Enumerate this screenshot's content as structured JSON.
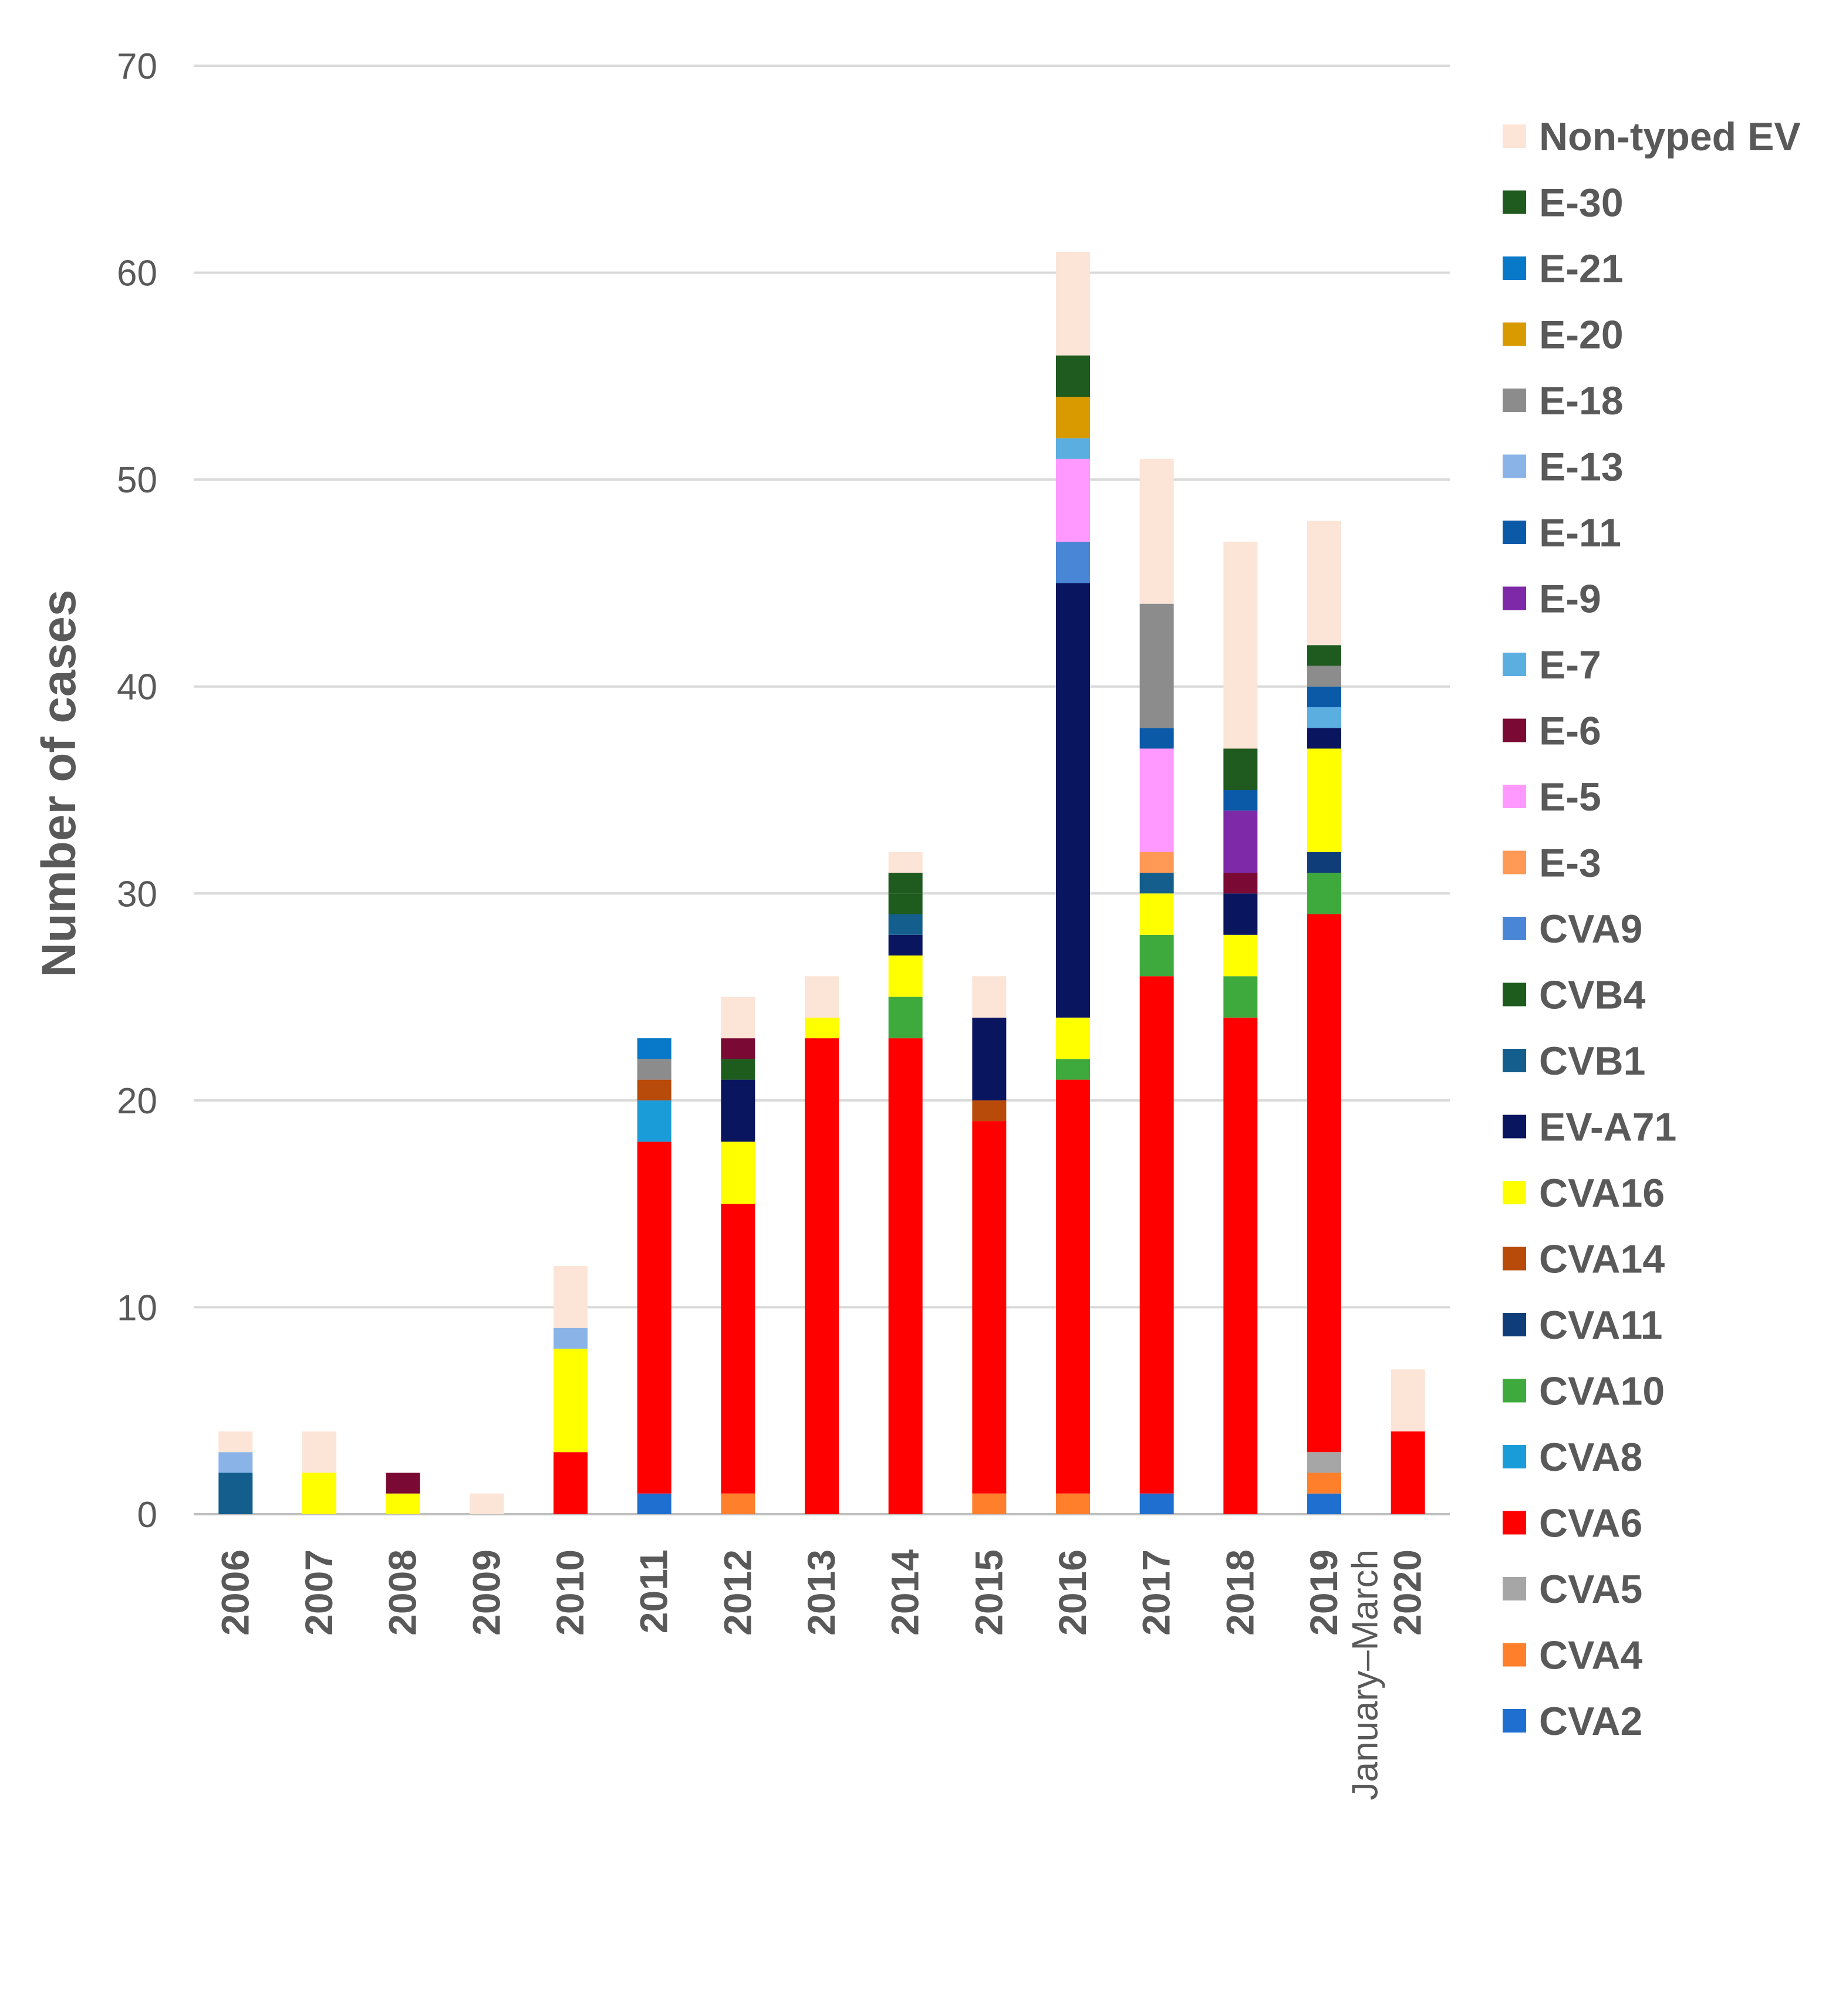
{
  "chart_data": {
    "type": "bar",
    "stacked": true,
    "title": "",
    "xlabel": "",
    "ylabel": "Number of cases",
    "ylim": [
      0,
      70
    ],
    "yticks": [
      0,
      10,
      20,
      30,
      40,
      50,
      60,
      70
    ],
    "grid": "horizontal",
    "legend_position": "right",
    "categories": [
      "2006",
      "2007",
      "2008",
      "2009",
      "2010",
      "2011",
      "2012",
      "2013",
      "2014",
      "2015",
      "2016",
      "2017",
      "2018",
      "2019",
      "2020"
    ],
    "category_sublabels": [
      "",
      "",
      "",
      "",
      "",
      "",
      "",
      "",
      "",
      "",
      "",
      "",
      "",
      "",
      "January–March"
    ],
    "series": [
      {
        "name": "CVA2",
        "color": "#1F6FD1",
        "values": [
          0,
          0,
          0,
          0,
          0,
          1,
          0,
          0,
          0,
          0,
          0,
          1,
          0,
          1,
          0
        ]
      },
      {
        "name": "CVA4",
        "color": "#FF7F2A",
        "values": [
          0,
          0,
          0,
          0,
          0,
          0,
          1,
          0,
          0,
          1,
          1,
          0,
          0,
          1,
          0
        ]
      },
      {
        "name": "CVA5",
        "color": "#A6A6A6",
        "values": [
          0,
          0,
          0,
          0,
          0,
          0,
          0,
          0,
          0,
          0,
          0,
          0,
          0,
          1,
          0
        ]
      },
      {
        "name": "CVA6",
        "color": "#FF0000",
        "values": [
          0,
          0,
          0,
          0,
          3,
          17,
          14,
          23,
          23,
          18,
          20,
          25,
          24,
          26,
          4
        ]
      },
      {
        "name": "CVA8",
        "color": "#1A9CD8",
        "values": [
          0,
          0,
          0,
          0,
          0,
          2,
          0,
          0,
          0,
          0,
          0,
          0,
          0,
          0,
          0
        ]
      },
      {
        "name": "CVA10",
        "color": "#3EAA3E",
        "values": [
          0,
          0,
          0,
          0,
          0,
          0,
          0,
          0,
          2,
          0,
          1,
          2,
          2,
          2,
          0
        ]
      },
      {
        "name": "CVA11",
        "color": "#0F3D7A",
        "values": [
          0,
          0,
          0,
          0,
          0,
          0,
          0,
          0,
          0,
          0,
          0,
          0,
          0,
          1,
          0
        ]
      },
      {
        "name": "CVA14",
        "color": "#B84A0A",
        "values": [
          0,
          0,
          0,
          0,
          0,
          1,
          0,
          0,
          0,
          1,
          0,
          0,
          0,
          0,
          0
        ]
      },
      {
        "name": "CVA16",
        "color": "#FFFF00",
        "values": [
          0,
          2,
          1,
          0,
          5,
          0,
          3,
          1,
          2,
          0,
          2,
          2,
          2,
          5,
          0
        ]
      },
      {
        "name": "EV-A71",
        "color": "#0A1560",
        "values": [
          0,
          0,
          0,
          0,
          0,
          0,
          3,
          0,
          1,
          4,
          21,
          0,
          2,
          1,
          0
        ]
      },
      {
        "name": "CVB1",
        "color": "#135E8C",
        "values": [
          2,
          0,
          0,
          0,
          0,
          0,
          0,
          0,
          1,
          0,
          0,
          1,
          0,
          0,
          0
        ]
      },
      {
        "name": "CVB4",
        "color": "#1E5C1E",
        "values": [
          0,
          0,
          0,
          0,
          0,
          0,
          1,
          0,
          1,
          0,
          0,
          0,
          0,
          0,
          0
        ]
      },
      {
        "name": "CVA9",
        "color": "#4A86D6",
        "values": [
          0,
          0,
          0,
          0,
          0,
          0,
          0,
          0,
          0,
          0,
          2,
          0,
          0,
          0,
          0
        ]
      },
      {
        "name": "E-3",
        "color": "#FF9955",
        "values": [
          0,
          0,
          0,
          0,
          0,
          0,
          0,
          0,
          0,
          0,
          0,
          1,
          0,
          0,
          0
        ]
      },
      {
        "name": "E-5",
        "color": "#FF99FF",
        "values": [
          0,
          0,
          0,
          0,
          0,
          0,
          0,
          0,
          0,
          0,
          4,
          5,
          0,
          0,
          0
        ]
      },
      {
        "name": "E-6",
        "color": "#7A0A33",
        "values": [
          0,
          0,
          1,
          0,
          0,
          0,
          1,
          0,
          0,
          0,
          0,
          0,
          1,
          0,
          0
        ]
      },
      {
        "name": "E-7",
        "color": "#5AAEE0",
        "values": [
          0,
          0,
          0,
          0,
          0,
          0,
          0,
          0,
          0,
          0,
          1,
          0,
          0,
          1,
          0
        ]
      },
      {
        "name": "E-9",
        "color": "#7E2AA8",
        "values": [
          0,
          0,
          0,
          0,
          0,
          0,
          0,
          0,
          0,
          0,
          0,
          0,
          3,
          0,
          0
        ]
      },
      {
        "name": "E-11",
        "color": "#0B5AA8",
        "values": [
          0,
          0,
          0,
          0,
          0,
          0,
          0,
          0,
          0,
          0,
          0,
          1,
          1,
          1,
          0
        ]
      },
      {
        "name": "E-13",
        "color": "#8AB4E8",
        "values": [
          1,
          0,
          0,
          0,
          1,
          0,
          0,
          0,
          0,
          0,
          0,
          0,
          0,
          0,
          0
        ]
      },
      {
        "name": "E-18",
        "color": "#8C8C8C",
        "values": [
          0,
          0,
          0,
          0,
          0,
          1,
          0,
          0,
          0,
          0,
          0,
          6,
          0,
          1,
          0
        ]
      },
      {
        "name": "E-20",
        "color": "#D99A00",
        "values": [
          0,
          0,
          0,
          0,
          0,
          0,
          0,
          0,
          0,
          0,
          2,
          0,
          0,
          0,
          0
        ]
      },
      {
        "name": "E-21",
        "color": "#0878C8",
        "values": [
          0,
          0,
          0,
          0,
          0,
          1,
          0,
          0,
          0,
          0,
          0,
          0,
          0,
          0,
          0
        ]
      },
      {
        "name": "E-30",
        "color": "#1F5A1F",
        "values": [
          0,
          0,
          0,
          0,
          0,
          0,
          0,
          0,
          1,
          0,
          2,
          0,
          2,
          1,
          0
        ]
      },
      {
        "name": "Non-typed EV",
        "color": "#FCE4D6",
        "values": [
          1,
          2,
          0,
          1,
          3,
          0,
          2,
          2,
          1,
          2,
          5,
          7,
          10,
          6,
          3
        ]
      }
    ]
  }
}
